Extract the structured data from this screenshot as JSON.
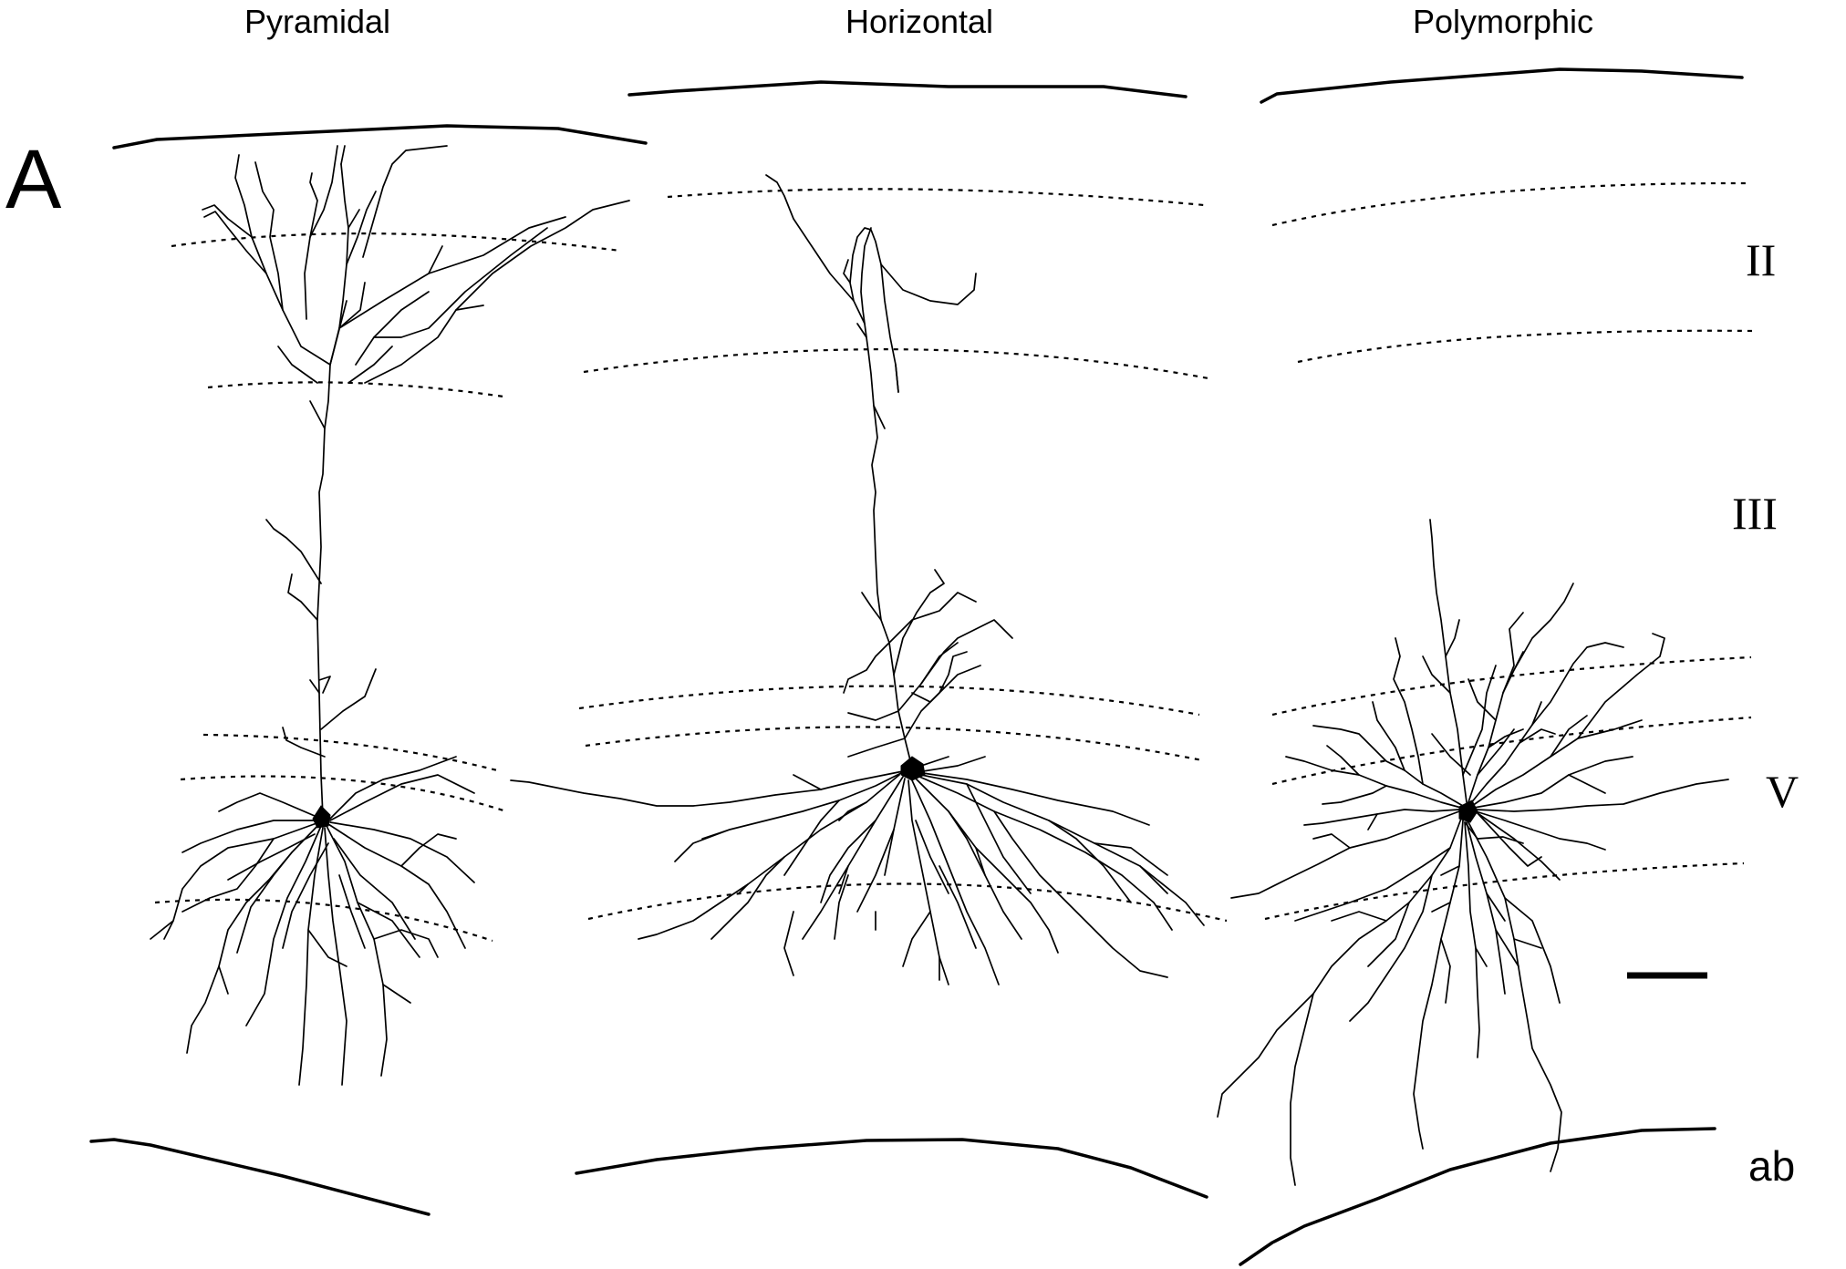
{
  "panel_label": "A",
  "columns": [
    {
      "id": "pyramidal",
      "title": "Pyramidal"
    },
    {
      "id": "horizontal",
      "title": "Horizontal"
    },
    {
      "id": "polymorphic",
      "title": "Polymorphic"
    }
  ],
  "layer_labels": {
    "II": "II",
    "III": "III",
    "V": "V",
    "ab": "ab"
  }
}
